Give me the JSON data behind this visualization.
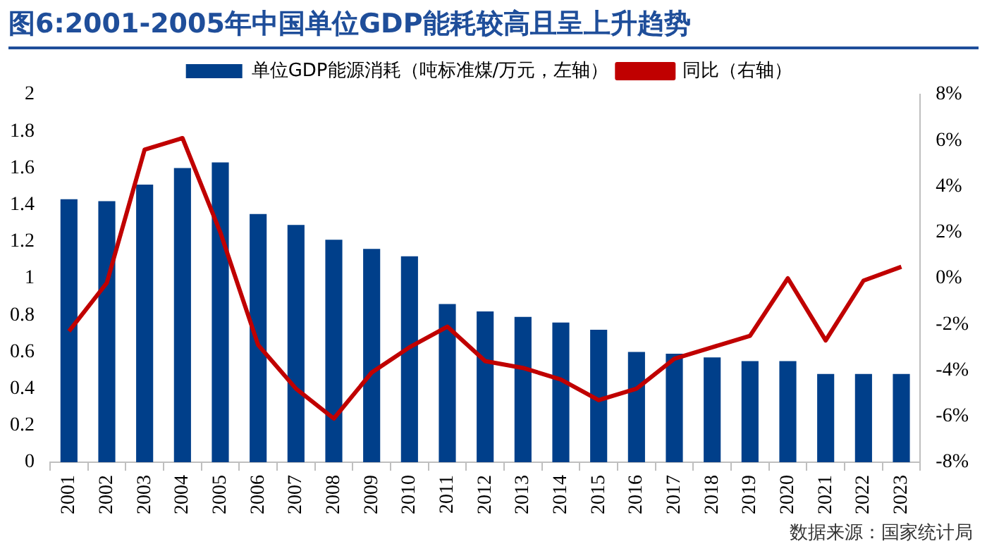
{
  "chart_data": {
    "type": "bar",
    "title": "图6:2001-2005年中国单位GDP能耗较高且呈上升趋势",
    "categories": [
      "2001",
      "2002",
      "2003",
      "2004",
      "2005",
      "2006",
      "2007",
      "2008",
      "2009",
      "2010",
      "2011",
      "2012",
      "2013",
      "2014",
      "2015",
      "2016",
      "2017",
      "2018",
      "2019",
      "2020",
      "2021",
      "2022",
      "2023"
    ],
    "series": [
      {
        "name": "单位GDP能源消耗（吨标准煤/万元，左轴）",
        "color": "#003f8a",
        "values": [
          1.43,
          1.42,
          1.51,
          1.6,
          1.63,
          1.35,
          1.29,
          1.21,
          1.16,
          1.12,
          0.86,
          0.82,
          0.79,
          0.76,
          0.72,
          0.6,
          0.59,
          0.57,
          0.55,
          0.55,
          0.48,
          0.48,
          0.48
        ]
      },
      {
        "name": "同比（右轴）",
        "type": "line",
        "axis": "y2",
        "color": "#c00000",
        "values": [
          -2.3,
          -0.2,
          5.6,
          6.1,
          2.0,
          -2.9,
          -4.8,
          -6.1,
          -4.1,
          -3.0,
          -2.1,
          -3.6,
          -3.9,
          -4.4,
          -5.3,
          -4.8,
          -3.5,
          -3.0,
          -2.5,
          0,
          -2.7,
          -0.1,
          0.5
        ]
      }
    ],
    "ylim": [
      0,
      2
    ],
    "yticks": [
      0,
      0.2,
      0.4,
      0.6,
      0.8,
      1,
      1.2,
      1.4,
      1.6,
      1.8,
      2
    ],
    "y2lim": [
      -8,
      8
    ],
    "y2ticks": [
      {
        "value": -8,
        "label": "-8%"
      },
      {
        "value": -6,
        "label": "-6%"
      },
      {
        "value": -4,
        "label": "-4%"
      },
      {
        "value": -2,
        "label": "-2%"
      },
      {
        "value": 0,
        "label": "0%"
      },
      {
        "value": 2,
        "label": "2%"
      },
      {
        "value": 4,
        "label": "4%"
      },
      {
        "value": 6,
        "label": "6%"
      },
      {
        "value": 8,
        "label": "8%"
      }
    ],
    "legend": "top",
    "grid": false,
    "marker": "none",
    "line_style": "solid",
    "annotations": [
      "数据来源：国家统计局"
    ]
  }
}
